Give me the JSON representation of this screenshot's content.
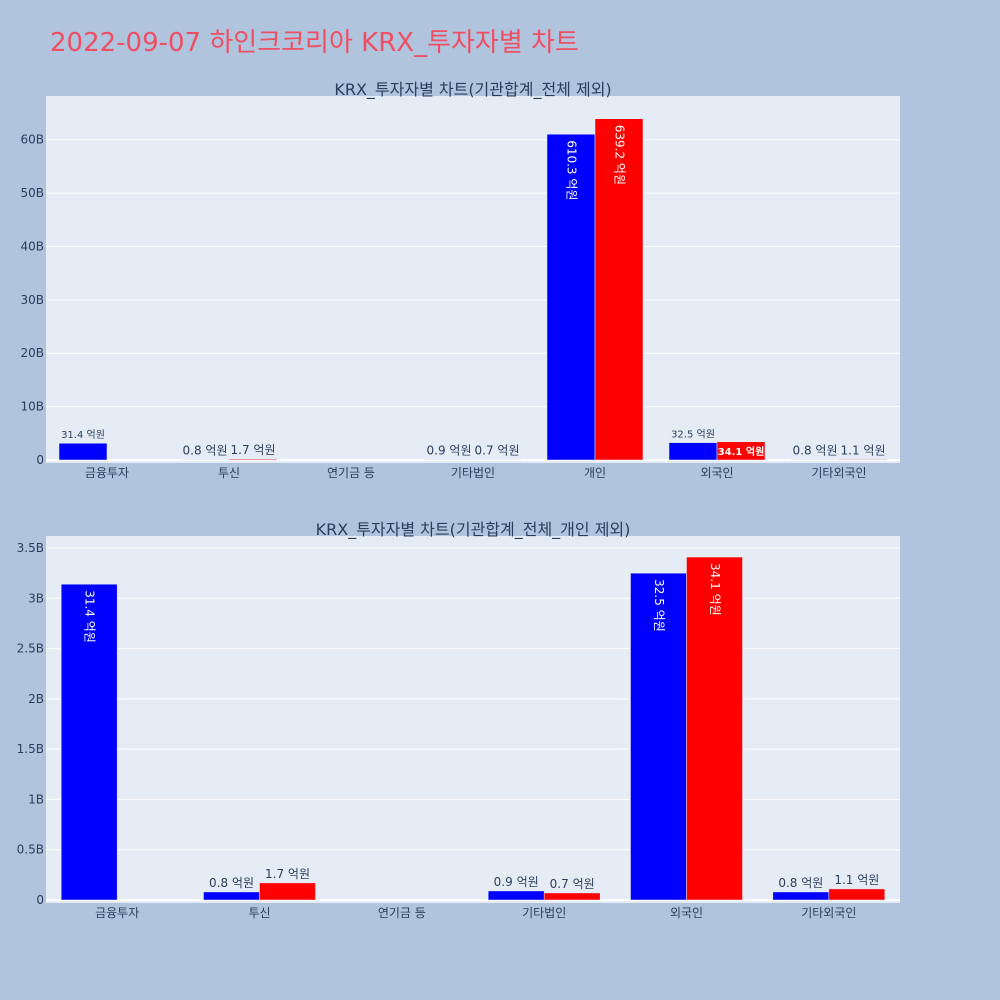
{
  "page": {
    "title": "2022-09-07 하인크코리아 KRX_투자자별 차트"
  },
  "colors": {
    "background": "#b0c4de",
    "plot_bg": "#e5ecf6",
    "buy": "#0000ff",
    "sell": "#ff0000",
    "title": "#ef4e63"
  },
  "chart_data": [
    {
      "type": "bar",
      "title": "KRX_투자자별 차트(기관합계_전체 제외)",
      "categories": [
        "금융투자",
        "투신",
        "연기금 등",
        "기타법인",
        "개인",
        "외국인",
        "기타외국인"
      ],
      "ylim": [
        0,
        65000000000
      ],
      "yticks": [
        0,
        10000000000,
        20000000000,
        30000000000,
        40000000000,
        50000000000,
        60000000000
      ],
      "ytick_labels": [
        "0",
        "10B",
        "20B",
        "30B",
        "40B",
        "50B",
        "60B"
      ],
      "grid": true,
      "series": [
        {
          "color": "#0000ff",
          "values": [
            3140000000,
            80000000,
            0,
            90000000,
            61030000000,
            3250000000,
            80000000
          ],
          "labels": [
            "31.4 억원",
            "0.8 억원",
            "",
            "0.9 억원",
            "610.3 억원",
            "32.5 억원",
            "0.8 억원"
          ]
        },
        {
          "color": "#ff0000",
          "values": [
            0,
            170000000,
            0,
            70000000,
            63920000000,
            3410000000,
            110000000
          ],
          "labels": [
            "",
            "1.7 억원",
            "",
            "0.7 억원",
            "639.2 억원",
            "34.1 억원",
            "1.1 억원"
          ]
        }
      ]
    },
    {
      "type": "bar",
      "title": "KRX_투자자별 차트(기관합계_전체_개인 제외)",
      "categories": [
        "금융투자",
        "투신",
        "연기금 등",
        "기타법인",
        "외국인",
        "기타외국인"
      ],
      "ylim": [
        0,
        3500000000
      ],
      "yticks": [
        0,
        500000000,
        1000000000,
        1500000000,
        2000000000,
        2500000000,
        3000000000,
        3500000000
      ],
      "ytick_labels": [
        "0",
        "0.5B",
        "1B",
        "1.5B",
        "2B",
        "2.5B",
        "3B",
        "3.5B"
      ],
      "grid": true,
      "series": [
        {
          "color": "#0000ff",
          "values": [
            3140000000,
            80000000,
            0,
            90000000,
            3250000000,
            80000000
          ],
          "labels": [
            "31.4 억원",
            "0.8 억원",
            "",
            "0.9 억원",
            "32.5 억원",
            "0.8 억원"
          ]
        },
        {
          "color": "#ff0000",
          "values": [
            0,
            170000000,
            0,
            70000000,
            3410000000,
            110000000
          ],
          "labels": [
            "",
            "1.7 억원",
            "",
            "0.7 억원",
            "34.1 억원",
            "1.1 억원"
          ]
        }
      ]
    }
  ]
}
